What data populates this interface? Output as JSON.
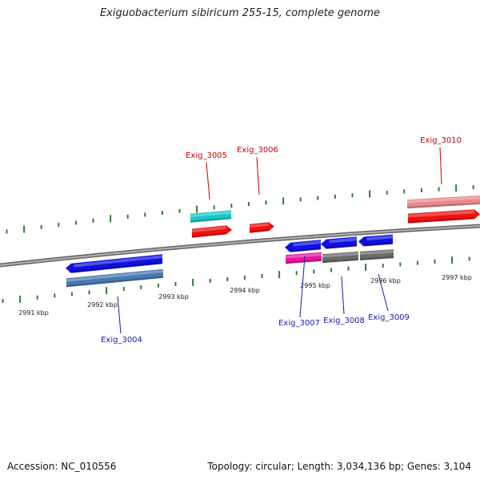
{
  "title": "Exiguobacterium sibiricum 255-15, complete genome",
  "footer": {
    "accession": "Accession: NC_010556",
    "stats": "Topology: circular; Length: 3,034,136 bp; Genes: 3,104"
  },
  "colors": {
    "backbone": "#8c8c8c",
    "tick": "#2e7d32",
    "forward_label": "#cc0000",
    "reverse_label": "#1a1aaa",
    "blue": "#1010e0",
    "steelblue": "#4a78b0",
    "cyan": "#19c8c8",
    "red": "#ee1111",
    "salmon": "#e88a8a",
    "gray": "#6a6a6a",
    "magenta": "#e8149c",
    "lightgray": "#c8c8c8"
  },
  "scale": {
    "unit": "kbp",
    "labels": [
      "2991 kbp",
      "2992 kbp",
      "2993 kbp",
      "2994 kbp",
      "2995 kbp",
      "2996 kbp",
      "2997 kbp"
    ]
  },
  "genes": [
    {
      "id": "gene-exig-3004",
      "name": "Exig_3004",
      "strand": "-",
      "label_color": "reverse_label"
    },
    {
      "id": "gene-exig-3005",
      "name": "Exig_3005",
      "strand": "+",
      "label_color": "forward_label"
    },
    {
      "id": "gene-exig-3006",
      "name": "Exig_3006",
      "strand": "+",
      "label_color": "forward_label"
    },
    {
      "id": "gene-exig-3007",
      "name": "Exig_3007",
      "strand": "-",
      "label_color": "reverse_label"
    },
    {
      "id": "gene-exig-3008",
      "name": "Exig_3008",
      "strand": "-",
      "label_color": "reverse_label"
    },
    {
      "id": "gene-exig-3009",
      "name": "Exig_3009",
      "strand": "-",
      "label_color": "reverse_label"
    },
    {
      "id": "gene-exig-3010",
      "name": "Exig_3010",
      "strand": "+",
      "label_color": "forward_label"
    }
  ]
}
